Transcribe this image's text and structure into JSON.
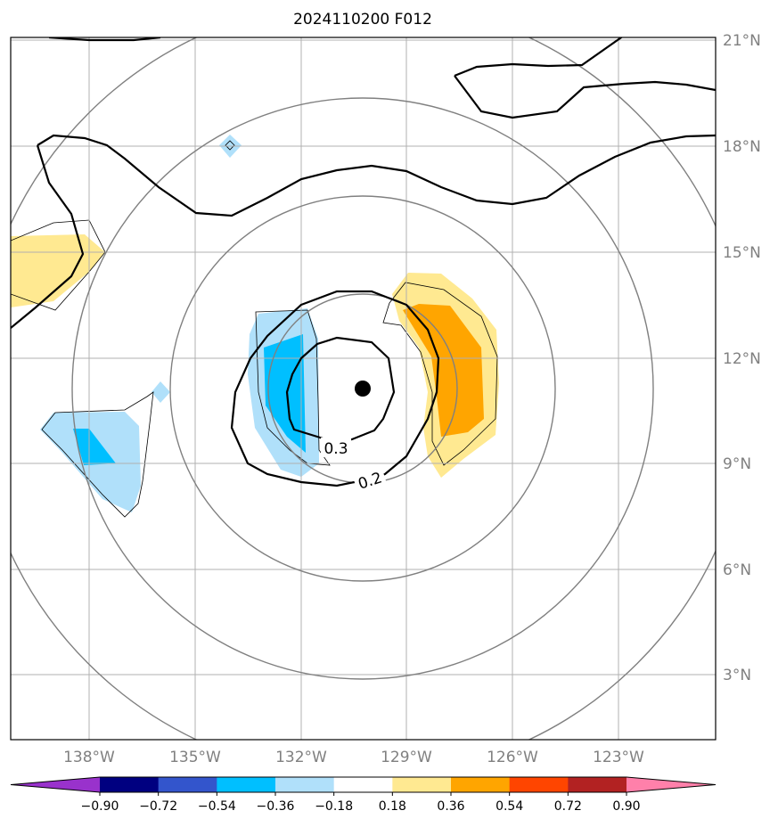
{
  "title": "2024110200 F012",
  "lat_labels": [
    "21°N",
    "18°N",
    "15°N",
    "12°N",
    "9°N",
    "6°N",
    "3°N"
  ],
  "lon_labels": [
    "138°W",
    "135°W",
    "132°W",
    "129°W",
    "126°W",
    "123°W"
  ],
  "contour_labels": [
    "0.3",
    "0.2"
  ],
  "colorbar": {
    "ticks": [
      "−0.90",
      "−0.72",
      "−0.54",
      "−0.36",
      "−0.18",
      "0.18",
      "0.36",
      "0.54",
      "0.72",
      "0.90"
    ],
    "colors": [
      "#9932cc",
      "#000080",
      "#3355cc",
      "#00bfff",
      "#b0e0fa",
      "#ffffff",
      "#ffe991",
      "#ffa500",
      "#ff4500",
      "#b22222",
      "#ff80aa"
    ]
  },
  "colors": {
    "neg_light": "#b0e0fa",
    "neg_mid": "#00bfff",
    "pos_light": "#ffe991",
    "pos_mid": "#ffa500",
    "grid": "#b0b0b0",
    "range_rings": "#808080"
  },
  "storm_center": {
    "lon": -130.2,
    "lat": 11.1
  }
}
